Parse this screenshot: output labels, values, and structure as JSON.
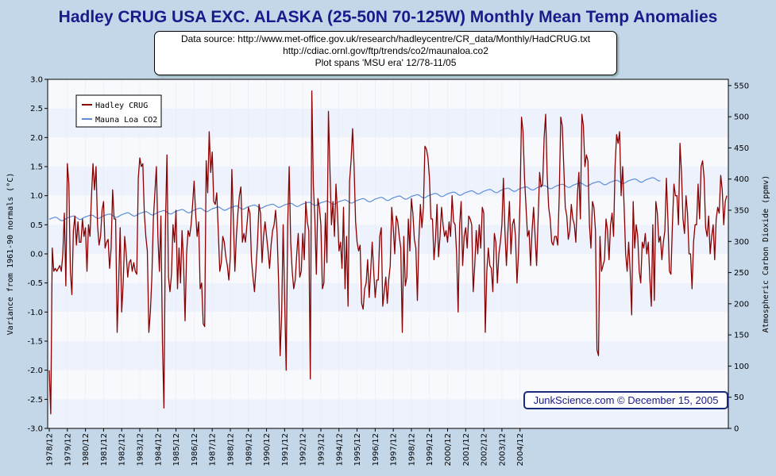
{
  "chart_data": {
    "type": "line",
    "title": "Hadley CRUG USA EXC. ALASKA (25-50N 70-125W) Monthly Mean Temp Anomalies",
    "source_lines": [
      "Data source: http://www.met-office.gov.uk/research/hadleycentre/CR_data/Monthly/HadCRUG.txt",
      "http://cdiac.ornl.gov/ftp/trends/co2/maunaloa.co2",
      "Plot spans 'MSU era' 12/78-11/05"
    ],
    "credit": "JunkScience.com © December 15, 2005",
    "ylabel_left": "Variance from 1961-90 normals (°C)",
    "ylabel_right": "Atmospheric Carbon Dioxide (ppmv)",
    "ylim_left": [
      -3.0,
      3.0
    ],
    "ylim_right": [
      0,
      560
    ],
    "yticks_left": [
      "3.0",
      "2.5",
      "2.0",
      "1.5",
      "1.0",
      "0.5",
      "0.0",
      "-0.5",
      "-1.0",
      "-1.5",
      "-2.0",
      "-2.5",
      "-3.0"
    ],
    "yticks_right": [
      "550",
      "500",
      "450",
      "400",
      "350",
      "300",
      "250",
      "200",
      "150",
      "100",
      "50",
      "0"
    ],
    "xticks": [
      "1978/12",
      "1979/12",
      "1980/12",
      "1981/12",
      "1982/12",
      "1983/12",
      "1984/12",
      "1985/12",
      "1986/12",
      "1987/12",
      "1988/12",
      "1989/12",
      "1990/12",
      "1991/12",
      "1992/12",
      "1993/12",
      "1994/12",
      "1995/12",
      "1996/12",
      "1997/12",
      "1998/12",
      "1999/12",
      "2000/12",
      "2001/12",
      "2002/12",
      "2003/12",
      "2004/12"
    ],
    "legend_placement": "top-left",
    "series": [
      {
        "name": "Hadley CRUG",
        "color": "#8b0000",
        "start": "1978/12",
        "frequency": "monthly",
        "values": [
          -2.0,
          -2.75,
          0.1,
          -0.3,
          -0.25,
          -0.3,
          -0.25,
          -0.2,
          -0.3,
          0.0,
          0.7,
          -0.55,
          1.55,
          1.2,
          -0.3,
          -0.7,
          0.4,
          0.65,
          0.15,
          0.55,
          0.2,
          0.2,
          0.6,
          0.3,
          0.45,
          -0.3,
          0.5,
          0.3,
          1.0,
          1.55,
          1.1,
          1.5,
          0.5,
          0.15,
          0.3,
          0.75,
          0.9,
          0.1,
          0.2,
          0.25,
          -0.25,
          0.1,
          1.1,
          0.6,
          0.6,
          -1.35,
          -0.5,
          0.45,
          -1.0,
          -0.5,
          0.3,
          0.0,
          -0.4,
          -0.15,
          -0.1,
          -0.3,
          -0.15,
          -0.3,
          -0.35,
          1.3,
          1.65,
          1.5,
          1.55,
          0.7,
          0.3,
          0.05,
          -1.35,
          -1.0,
          -0.4,
          0.6,
          1.05,
          1.5,
          0.3,
          -0.3,
          0.65,
          -1.5,
          -2.65,
          0.5,
          1.7,
          -0.4,
          -0.65,
          -0.35,
          0.5,
          0.2,
          0.75,
          -0.6,
          0.1,
          -0.5,
          0.4,
          -0.15,
          -1.15,
          0.0,
          0.4,
          0.3,
          0.5,
          0.85,
          1.25,
          0.7,
          0.3,
          0.55,
          -0.6,
          -0.5,
          -1.2,
          -1.25,
          1.6,
          1.05,
          2.1,
          1.4,
          1.75,
          0.9,
          0.85,
          1.05,
          0.4,
          -0.3,
          -0.15,
          0.3,
          0.2,
          -0.05,
          -0.2,
          -0.45,
          -0.05,
          1.45,
          0.6,
          -0.3,
          0.3,
          0.7,
          1.0,
          1.15,
          0.2,
          0.35,
          0.2,
          0.5,
          0.8,
          0.7,
          -0.1,
          -0.4,
          -0.65,
          -0.25,
          0.2,
          0.85,
          0.7,
          -0.15,
          0.3,
          0.55,
          0.3,
          0.05,
          -0.25,
          0.15,
          0.4,
          0.5,
          0.75,
          0.35,
          -0.5,
          -1.75,
          -1.05,
          0.5,
          -0.8,
          -2.0,
          0.5,
          1.5,
          0.2,
          -0.3,
          -0.6,
          -0.45,
          0.0,
          0.35,
          -0.4,
          -0.3,
          0.35,
          -0.1,
          0.9,
          0.55,
          0.4,
          -2.15,
          2.8,
          1.2,
          0.6,
          -0.35,
          0.95,
          0.8,
          0.5,
          -0.6,
          -0.5,
          0.7,
          -0.15,
          2.45,
          1.45,
          0.5,
          0.9,
          0.3,
          1.2,
          0.7,
          0.05,
          0.2,
          -0.25,
          0.8,
          -0.6,
          0.3,
          -0.9,
          1.25,
          1.6,
          2.15,
          1.5,
          0.55,
          0.2,
          0.05,
          0.15,
          -0.85,
          -0.95,
          -0.6,
          -0.5,
          -0.1,
          -0.75,
          -0.3,
          0.2,
          -0.3,
          -0.75,
          -0.45,
          -0.45,
          0.3,
          0.45,
          -0.9,
          -0.65,
          -0.4,
          -0.85,
          -0.45,
          -0.2,
          0.8,
          0.45,
          0.0,
          0.65,
          0.55,
          0.3,
          0.1,
          -1.35,
          0.3,
          -0.55,
          -0.4,
          0.6,
          0.05,
          0.95,
          0.7,
          0.25,
          0.1,
          -0.8,
          0.25,
          0.85,
          0.45,
          0.8,
          1.85,
          1.8,
          1.65,
          1.3,
          0.6,
          0.6,
          -0.1,
          0.25,
          0.85,
          -0.05,
          0.3,
          0.8,
          0.5,
          0.3,
          0.4,
          0.2,
          0.55,
          0.3,
          1.0,
          0.55,
          0.5,
          0.0,
          -1.0,
          0.5,
          0.9,
          -0.2,
          0.3,
          0.45,
          0.1,
          0.65,
          0.6,
          0.5,
          -0.65,
          -0.2,
          0.4,
          0.0,
          0.5,
          0.1,
          0.8,
          0.7,
          -1.35,
          -0.3,
          0.1,
          -0.2,
          -0.25,
          -0.65,
          0.35,
          0.2,
          -0.5,
          0.0,
          0.2,
          0.5,
          1.3,
          0.4,
          -0.2,
          0.4,
          0.9,
          0.0,
          0.5,
          0.6,
          0.3,
          -0.5,
          0.0,
          0.9,
          2.35,
          2.1,
          1.3,
          0.8,
          0.3,
          0.4,
          -0.2,
          0.4,
          0.8,
          0.3,
          -0.2,
          0.6,
          1.4,
          1.15,
          1.2,
          2.0,
          2.4,
          1.35,
          0.8,
          0.6,
          0.2,
          0.15,
          0.3,
          0.3,
          0.15,
          1.0,
          2.35,
          2.2,
          1.5,
          0.8,
          0.65,
          0.25,
          0.4,
          0.85,
          0.6,
          0.5,
          0.2,
          1.0,
          1.4,
          0.6,
          2.4,
          2.2,
          1.5,
          1.7,
          1.6,
          0.5,
          0.1,
          0.9,
          0.8,
          0.4,
          -1.65,
          -1.75,
          0.3,
          -0.3,
          -0.2,
          -0.1,
          0.6,
          0.4,
          -0.1,
          0.5,
          0.7,
          0.3,
          1.5,
          2.05,
          1.9,
          2.1,
          1.0,
          1.5,
          0.8,
          0.0,
          -0.3,
          0.2,
          -0.3,
          -1.05,
          0.9,
          0.1,
          0.5,
          0.3,
          -0.3,
          -0.5,
          0.2,
          0.1,
          0.35,
          0.0,
          0.2,
          -0.4,
          -0.9,
          0.5,
          -0.8,
          0.9,
          0.7,
          0.2,
          0.3,
          -0.1,
          0.2,
          0.4,
          1.3,
          0.6,
          -0.3,
          -0.35,
          0.5,
          1.2,
          1.0,
          1.0,
          0.5,
          1.9,
          1.4,
          0.6,
          0.35,
          1.0,
          0.7,
          0.0,
          0.0,
          -0.6,
          0.2,
          0.5,
          0.5,
          1.2,
          0.6,
          1.5,
          1.6,
          1.3,
          0.45,
          0.3,
          0.65,
          0.0,
          0.3,
          0.5,
          -0.1,
          0.6,
          0.8,
          0.7,
          1.35,
          1.1,
          0.5,
          0.9,
          1.0
        ]
      },
      {
        "name": "Mauna Loa CO2",
        "color": "#5b8fd8",
        "start": "1978/12",
        "frequency": "monthly",
        "values": [
          335.5,
          336.5,
          337.4,
          338.2,
          338.9,
          338.2,
          336.5,
          334.6,
          333.3,
          333.5,
          334.9,
          336.4,
          337.6,
          338.5,
          339.4,
          340.2,
          340.8,
          340.1,
          338.4,
          336.6,
          335.3,
          335.4,
          336.8,
          338.3,
          339.5,
          340.2,
          341.0,
          341.8,
          342.3,
          341.6,
          339.8,
          338.0,
          336.8,
          337.0,
          338.4,
          339.9,
          341.1,
          341.9,
          342.7,
          343.5,
          344.0,
          343.3,
          341.6,
          339.8,
          338.6,
          338.8,
          340.1,
          341.6,
          342.7,
          343.7,
          344.6,
          345.5,
          346.0,
          345.3,
          343.6,
          341.8,
          340.6,
          340.8,
          342.2,
          343.7,
          344.9,
          345.7,
          346.4,
          347.3,
          347.7,
          347.1,
          345.3,
          343.6,
          342.4,
          342.6,
          343.9,
          345.4,
          346.5,
          347.4,
          348.2,
          349.0,
          349.6,
          348.8,
          347.0,
          345.2,
          344.0,
          344.2,
          345.6,
          347.1,
          348.3,
          349.1,
          349.9,
          350.7,
          351.2,
          350.6,
          348.9,
          347.1,
          345.9,
          346.1,
          347.5,
          349.0,
          350.3,
          351.2,
          352.1,
          352.9,
          353.4,
          352.6,
          350.8,
          349.0,
          347.8,
          348.0,
          349.5,
          351.1,
          352.3,
          353.2,
          354.0,
          354.8,
          355.3,
          354.6,
          352.8,
          351.0,
          349.9,
          350.1,
          351.5,
          353.0,
          354.1,
          354.9,
          355.6,
          356.4,
          356.9,
          356.2,
          354.5,
          352.8,
          351.7,
          351.9,
          353.3,
          354.7,
          355.8,
          356.6,
          357.3,
          358.0,
          358.4,
          357.7,
          356.0,
          354.3,
          353.3,
          353.5,
          354.8,
          356.2,
          357.2,
          357.9,
          358.6,
          359.3,
          359.7,
          359.0,
          357.3,
          355.7,
          354.6,
          354.8,
          356.1,
          357.5,
          358.6,
          359.3,
          360.0,
          360.7,
          361.2,
          360.5,
          358.8,
          357.1,
          356.0,
          356.2,
          357.6,
          359.0,
          360.1,
          360.9,
          361.6,
          362.4,
          362.9,
          362.2,
          360.5,
          358.8,
          357.7,
          357.9,
          359.3,
          360.8,
          361.9,
          362.7,
          363.5,
          364.3,
          364.8,
          364.1,
          362.4,
          360.7,
          359.6,
          359.8,
          361.2,
          362.7,
          363.8,
          364.6,
          365.4,
          366.2,
          366.7,
          366.0,
          364.3,
          362.6,
          361.5,
          361.7,
          363.2,
          364.7,
          365.8,
          366.6,
          367.4,
          368.2,
          368.7,
          368.0,
          366.3,
          364.6,
          363.5,
          363.7,
          365.2,
          366.7,
          367.9,
          368.7,
          369.5,
          370.3,
          370.8,
          370.1,
          368.4,
          366.7,
          365.6,
          365.8,
          367.3,
          368.8,
          370.0,
          370.8,
          371.6,
          372.4,
          372.9,
          372.2,
          370.5,
          368.8,
          367.7,
          367.9,
          369.4,
          370.9,
          372.1,
          372.9,
          373.7,
          374.5,
          375.0,
          374.3,
          372.6,
          370.9,
          369.8,
          370.0,
          371.5,
          373.0,
          374.2,
          375.0,
          375.8,
          376.6,
          377.1,
          376.4,
          374.7,
          373.0,
          371.9,
          372.1,
          373.6,
          375.1,
          376.3,
          377.1,
          377.9,
          378.7,
          379.2,
          378.5,
          376.8,
          375.1,
          374.0,
          374.2,
          375.7,
          377.2,
          378.4,
          379.2,
          380.0,
          380.8,
          381.3,
          380.6,
          378.9,
          377.2,
          376.1,
          376.3,
          377.8,
          379.3,
          380.5,
          381.3,
          382.1,
          382.9,
          383.4,
          382.7,
          381.0,
          379.3,
          378.2,
          378.4,
          379.9,
          381.4,
          382.6,
          383.4,
          384.2,
          385.0,
          385.5,
          384.8,
          383.1,
          381.4,
          380.3,
          380.5,
          382.0,
          383.5,
          384.7,
          385.5,
          386.3,
          387.1,
          387.6,
          386.9,
          385.2,
          383.5,
          382.4,
          382.6,
          384.1,
          385.6,
          386.8,
          387.6,
          388.4,
          389.2,
          389.7,
          389.0,
          387.3,
          385.6,
          384.5,
          384.7,
          386.2,
          387.7,
          388.9,
          389.7,
          390.5,
          391.3,
          391.8,
          391.1,
          389.4,
          387.7,
          386.6,
          386.8,
          388.3,
          389.8,
          391.0,
          391.8,
          392.6,
          393.4,
          393.9,
          393.2,
          391.5,
          389.8,
          388.7,
          388.9,
          390.4,
          391.9,
          393.1,
          393.9,
          394.7,
          395.5,
          396.0,
          395.3,
          393.6,
          391.9,
          390.8,
          391.0,
          392.5,
          394.0,
          395.2,
          396.0,
          396.8,
          397.6,
          398.1,
          397.4,
          395.7,
          394.0,
          392.9,
          393.1,
          394.6,
          396.1,
          397.3,
          398.1,
          398.9,
          399.7,
          400.2,
          399.5,
          397.8,
          396.1,
          395.0,
          395.2,
          396.7,
          398.2,
          399.4,
          400.2,
          401.0,
          401.8,
          402.3,
          401.6,
          399.9,
          398.2,
          397.1,
          397.3
        ]
      }
    ]
  }
}
